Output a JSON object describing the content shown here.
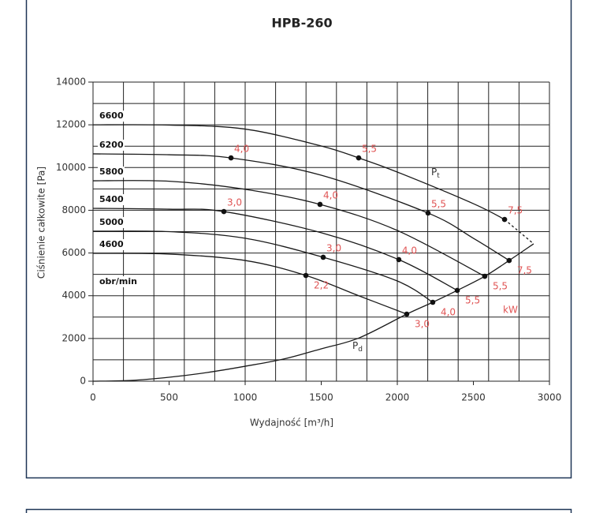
{
  "chart_data": {
    "type": "line",
    "title": "HPB-260",
    "x_label": "Wydajność [m³/h]",
    "y_label": "Ciśnienie całkowite [Pa]",
    "xlim": [
      0,
      3000
    ],
    "ylim": [
      0,
      14000
    ],
    "xticks": [
      0,
      500,
      1000,
      1500,
      2000,
      2500,
      3000
    ],
    "yticks": [
      0,
      2000,
      4000,
      6000,
      8000,
      10000,
      12000,
      14000
    ],
    "xgrid": [
      200,
      400,
      600,
      800,
      1000,
      1200,
      1400,
      1600,
      1800,
      2000,
      2200,
      2400,
      2600,
      2800,
      3000
    ],
    "ygrid": [
      1000,
      2000,
      3000,
      4000,
      5000,
      6000,
      7000,
      8000,
      9000,
      10000,
      11000,
      12000,
      13000,
      14000
    ],
    "grid": true,
    "line_color": "#1a1a1a",
    "marker_color": "#e05555",
    "units_label": "obr/min",
    "power_unit": "kW",
    "total_pressure": {
      "name": "P",
      "subscript": "t"
    },
    "dynamic_pressure": {
      "name": "P",
      "subscript": "d"
    },
    "series": [
      {
        "name": "6600",
        "x": [
          0,
          500,
          1000,
          1500,
          1746,
          2000,
          2500,
          2705
        ],
        "values": [
          12000,
          11990,
          11800,
          11010,
          10450,
          9790,
          8310,
          7570
        ]
      },
      {
        "name": "6200",
        "x": [
          0,
          500,
          907,
          1500,
          2202,
          2500,
          2735
        ],
        "values": [
          10640,
          10600,
          10450,
          9640,
          7870,
          6690,
          5650
        ]
      },
      {
        "name": "5800",
        "x": [
          0,
          500,
          1000,
          1492,
          2000,
          2575
        ],
        "values": [
          9380,
          9360,
          8980,
          8275,
          7055,
          4910
        ]
      },
      {
        "name": "5400",
        "x": [
          0,
          500,
          860,
          1500,
          2010,
          2394
        ],
        "values": [
          8090,
          8050,
          7940,
          6950,
          5690,
          4250
        ]
      },
      {
        "name": "5000",
        "x": [
          0,
          500,
          1000,
          1513,
          2000,
          2233
        ],
        "values": [
          7020,
          7000,
          6690,
          5800,
          4690,
          3694
        ]
      },
      {
        "name": "4600",
        "x": [
          0,
          500,
          1000,
          1399,
          1750,
          2062
        ],
        "values": [
          5985,
          5950,
          5650,
          4950,
          3990,
          3140
        ]
      }
    ],
    "dynamic_curve": {
      "x": [
        0,
        250,
        500,
        750,
        1000,
        1250,
        1500,
        1750,
        2062,
        2233,
        2394,
        2575,
        2735,
        2896
      ],
      "values": [
        0,
        37,
        185,
        406,
        700,
        1034,
        1515,
        2030,
        3140,
        3694,
        4250,
        4910,
        5650,
        6430
      ]
    },
    "dashed_curve": {
      "x": [
        2705,
        2896
      ],
      "values": [
        7570,
        6430
      ]
    },
    "markers": [
      {
        "x": 907,
        "y": 10450,
        "label": "4,0",
        "label_position": "above"
      },
      {
        "x": 1746,
        "y": 10450,
        "label": "5,5",
        "label_position": "above"
      },
      {
        "x": 2202,
        "y": 7870,
        "label": "5,5",
        "label_position": "above"
      },
      {
        "x": 2705,
        "y": 7570,
        "label": "7,5",
        "label_position": "above"
      },
      {
        "x": 2735,
        "y": 5650,
        "label": "7,5",
        "label_position": "below"
      },
      {
        "x": 860,
        "y": 7940,
        "label": "3,0",
        "label_position": "above"
      },
      {
        "x": 1492,
        "y": 8275,
        "label": "4,0",
        "label_position": "above"
      },
      {
        "x": 2010,
        "y": 5690,
        "label": "4,0",
        "label_position": "above"
      },
      {
        "x": 2575,
        "y": 4910,
        "label": "5,5",
        "label_position": "below"
      },
      {
        "x": 1513,
        "y": 5800,
        "label": "3,0",
        "label_position": "above"
      },
      {
        "x": 2394,
        "y": 4250,
        "label": "5,5",
        "label_position": "below"
      },
      {
        "x": 1399,
        "y": 4950,
        "label": "2,2",
        "label_position": "below"
      },
      {
        "x": 2233,
        "y": 3694,
        "label": "4,0",
        "label_position": "below"
      },
      {
        "x": 2062,
        "y": 3140,
        "label": "3,0",
        "label_position": "below"
      }
    ]
  }
}
